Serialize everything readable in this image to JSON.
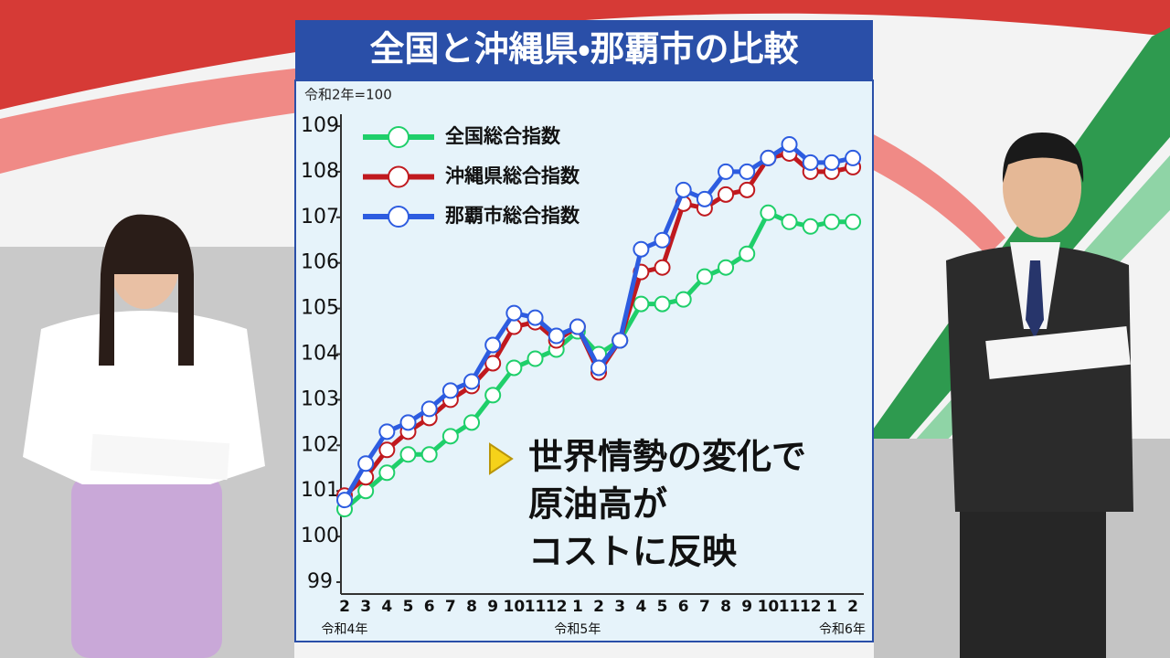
{
  "chart_data": {
    "type": "line",
    "title": "全国と沖縄県・那覇市の比較",
    "unit_note": "令和2年=100",
    "categories": [
      "2",
      "3",
      "4",
      "5",
      "6",
      "7",
      "8",
      "9",
      "10",
      "11",
      "12",
      "1",
      "2",
      "3",
      "4",
      "5",
      "6",
      "7",
      "8",
      "9",
      "10",
      "11",
      "12",
      "1",
      "2"
    ],
    "x_sublabels": [
      "令和4年",
      null,
      null,
      null,
      null,
      null,
      null,
      null,
      null,
      null,
      null,
      "令和5年",
      null,
      null,
      null,
      null,
      null,
      null,
      null,
      null,
      null,
      null,
      null,
      "令和6年",
      null
    ],
    "ylim": [
      99,
      109
    ],
    "yticks": [
      99,
      100,
      101,
      102,
      103,
      104,
      105,
      106,
      107,
      108,
      109
    ],
    "series": [
      {
        "name": "全国総合指数",
        "color": "#1fcf6a",
        "values": [
          100.6,
          101.0,
          101.4,
          101.8,
          101.8,
          102.2,
          102.5,
          103.1,
          103.7,
          103.9,
          104.1,
          104.5,
          104.0,
          104.3,
          105.1,
          105.1,
          105.2,
          105.7,
          105.9,
          106.2,
          107.1,
          106.9,
          106.8,
          106.9,
          106.9
        ]
      },
      {
        "name": "沖縄県総合指数",
        "color": "#c0191e",
        "values": [
          100.9,
          101.3,
          101.9,
          102.3,
          102.6,
          103.0,
          103.3,
          103.8,
          104.6,
          104.7,
          104.3,
          104.6,
          103.6,
          104.3,
          105.8,
          105.9,
          107.3,
          107.2,
          107.5,
          107.6,
          108.3,
          108.4,
          108.0,
          108.0,
          108.1
        ]
      },
      {
        "name": "那覇市総合指数",
        "color": "#2d5ce0",
        "values": [
          100.8,
          101.6,
          102.3,
          102.5,
          102.8,
          103.2,
          103.4,
          104.2,
          104.9,
          104.8,
          104.4,
          104.6,
          103.7,
          104.3,
          106.3,
          106.5,
          107.6,
          107.4,
          108.0,
          108.0,
          108.3,
          108.6,
          108.2,
          108.2,
          108.3
        ]
      }
    ],
    "annotation": [
      "世界情勢の変化で",
      "原油高が",
      "コストに反映"
    ]
  }
}
